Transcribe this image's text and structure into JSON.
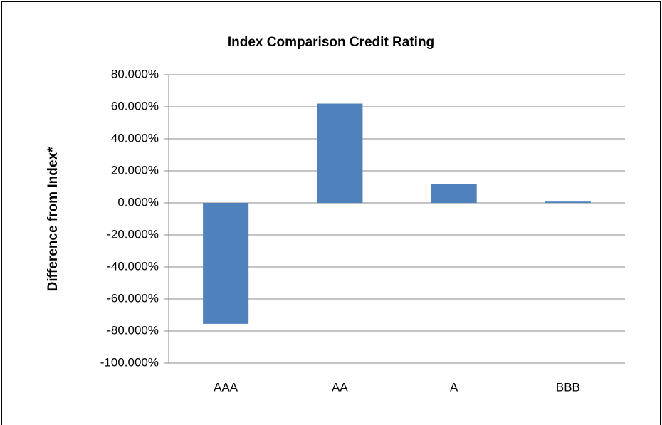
{
  "chart_data": {
    "type": "bar",
    "title": "Index Comparison Credit Rating",
    "y_label": "Difference from Index*",
    "categories": [
      "AAA",
      "AA",
      "A",
      "BBB"
    ],
    "values": [
      -75.5,
      62,
      12,
      0.8
    ],
    "color": "#4f81bd",
    "ylim": [
      -100,
      80
    ],
    "yticks": [
      {
        "value": -100,
        "label": "-100.000%"
      },
      {
        "value": -80,
        "label": "-80.000%"
      },
      {
        "value": -60,
        "label": "-60.000%"
      },
      {
        "value": -40,
        "label": "-40.000%"
      },
      {
        "value": -20,
        "label": "-20.000%"
      },
      {
        "value": 0,
        "label": "0.000%"
      },
      {
        "value": 20,
        "label": "20.000%"
      },
      {
        "value": 40,
        "label": "40.000%"
      },
      {
        "value": 60,
        "label": "60.000%"
      },
      {
        "value": 80,
        "label": "80.000%"
      }
    ],
    "grid": true
  }
}
